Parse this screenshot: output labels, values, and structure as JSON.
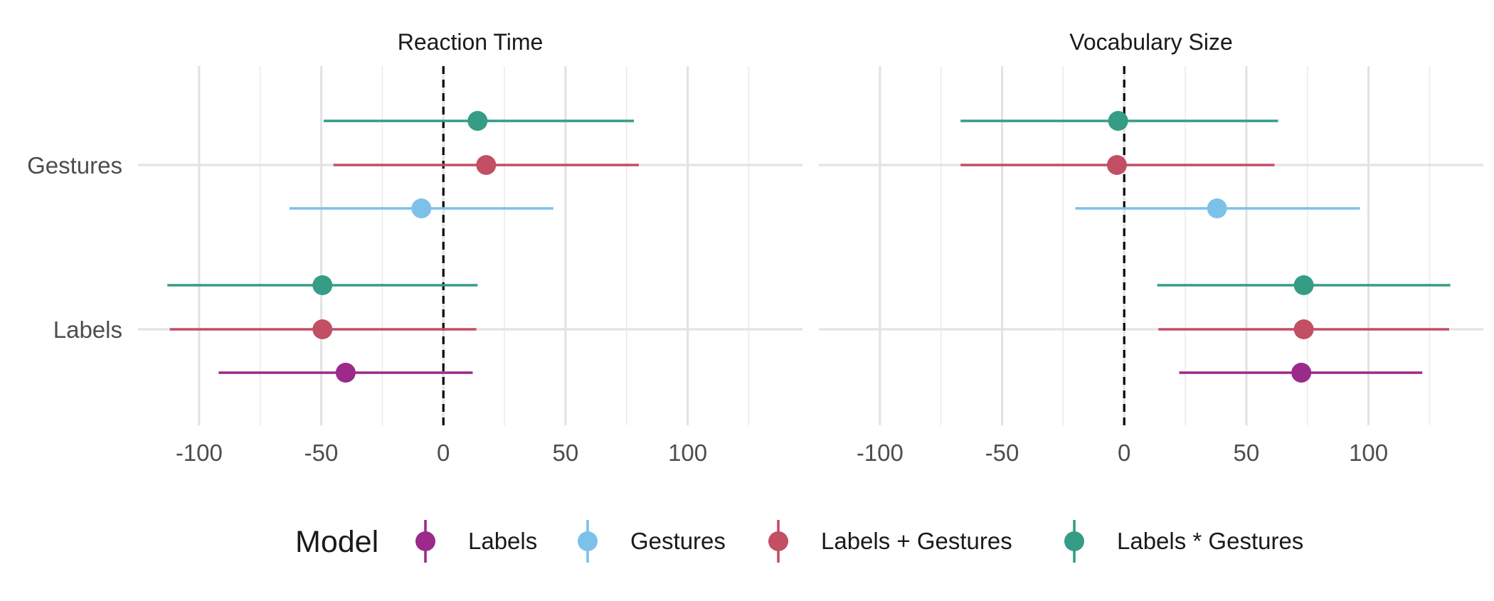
{
  "chart_data": {
    "type": "forest",
    "x_ticks": [
      -100,
      -50,
      0,
      50,
      100
    ],
    "x_range": [
      -125,
      147
    ],
    "categories": [
      "Gestures",
      "Labels"
    ],
    "reference_line": 0,
    "grid": true,
    "legend": {
      "title": "Model",
      "position": "bottom",
      "entries": [
        {
          "label": "Labels",
          "color": "#9b2a8a"
        },
        {
          "label": "Gestures",
          "color": "#7cc1ea"
        },
        {
          "label": "Labels + Gestures",
          "color": "#c24f63"
        },
        {
          "label": "Labels * Gestures",
          "color": "#359c85"
        }
      ]
    },
    "panels": [
      {
        "title": "Reaction Time",
        "points": [
          {
            "category": "Gestures",
            "model": "Labels * Gestures",
            "estimate": 14,
            "low": -49,
            "high": 78
          },
          {
            "category": "Gestures",
            "model": "Labels + Gestures",
            "estimate": 17.5,
            "low": -45,
            "high": 80
          },
          {
            "category": "Gestures",
            "model": "Gestures",
            "estimate": -9,
            "low": -63,
            "high": 45
          },
          {
            "category": "Labels",
            "model": "Labels * Gestures",
            "estimate": -49.5,
            "low": -113,
            "high": 14
          },
          {
            "category": "Labels",
            "model": "Labels + Gestures",
            "estimate": -49.5,
            "low": -112,
            "high": 13.5
          },
          {
            "category": "Labels",
            "model": "Labels",
            "estimate": -40,
            "low": -92,
            "high": 12
          }
        ]
      },
      {
        "title": "Vocabulary Size",
        "points": [
          {
            "category": "Gestures",
            "model": "Labels * Gestures",
            "estimate": -2.5,
            "low": -67,
            "high": 63
          },
          {
            "category": "Gestures",
            "model": "Labels + Gestures",
            "estimate": -3,
            "low": -67,
            "high": 61.5
          },
          {
            "category": "Gestures",
            "model": "Gestures",
            "estimate": 38,
            "low": -20,
            "high": 96.5
          },
          {
            "category": "Labels",
            "model": "Labels * Gestures",
            "estimate": 73.5,
            "low": 13.5,
            "high": 133.5
          },
          {
            "category": "Labels",
            "model": "Labels + Gestures",
            "estimate": 73.5,
            "low": 14,
            "high": 133
          },
          {
            "category": "Labels",
            "model": "Labels",
            "estimate": 72.5,
            "low": 22.5,
            "high": 122
          }
        ]
      }
    ]
  }
}
